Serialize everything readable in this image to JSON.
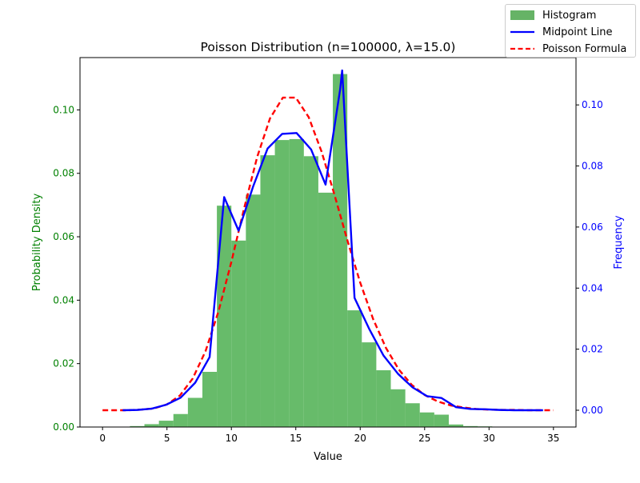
{
  "chart_data": {
    "type": "bar",
    "title": "Poisson Distribution (n=100000, λ=15.0)",
    "xlabel": "Value",
    "ylabel_left": "Probability Density",
    "ylabel_right": "Frequency",
    "xlim": [
      -1.75,
      36.75
    ],
    "ylim_left": [
      0,
      0.1165
    ],
    "ylim_right": [
      -0.0055,
      0.1155
    ],
    "x_ticks": [
      0,
      5,
      10,
      15,
      20,
      25,
      30,
      35
    ],
    "y_ticks_left": [
      0.0,
      0.02,
      0.04,
      0.06,
      0.08,
      0.1
    ],
    "y_ticks_right": [
      0.0,
      0.02,
      0.04,
      0.06,
      0.08,
      0.1
    ],
    "x_tick_labels": [
      "0",
      "5",
      "10",
      "15",
      "20",
      "25",
      "30",
      "35"
    ],
    "y_tick_labels_left": [
      "0.00",
      "0.02",
      "0.04",
      "0.06",
      "0.08",
      "0.10"
    ],
    "y_tick_labels_right": [
      "0.00",
      "0.02",
      "0.04",
      "0.06",
      "0.08",
      "0.10"
    ],
    "colors": {
      "histogram": "#4caf50",
      "midpoint": "#0000ff",
      "poisson": "#ff0000",
      "left_axis": "#008000",
      "right_axis": "#0000ff"
    },
    "legend": {
      "placement": "top-right",
      "entries": [
        "Histogram",
        "Midpoint Line",
        "Poisson Formula"
      ]
    },
    "histogram": {
      "name": "Histogram",
      "bin_edges": [
        1.0,
        2.125,
        3.25,
        4.375,
        5.5,
        6.625,
        7.75,
        8.875,
        10.0,
        11.125,
        12.25,
        13.375,
        14.5,
        15.625,
        16.75,
        17.875,
        19.0,
        20.125,
        21.25,
        22.375,
        23.5,
        24.625,
        25.75,
        26.875,
        28.0,
        29.125,
        30.25,
        31.375
      ],
      "values": [
        5e-05,
        0.0003,
        0.0009,
        0.002,
        0.0041,
        0.0092,
        0.0174,
        0.0698,
        0.0588,
        0.0733,
        0.0857,
        0.0905,
        0.0908,
        0.0854,
        0.0739,
        0.1113,
        0.0368,
        0.0267,
        0.0179,
        0.0119,
        0.0075,
        0.0046,
        0.0039,
        0.0008,
        0.0003,
        0.0002,
        5e-05
      ]
    },
    "midpoint_line": {
      "name": "Midpoint Line",
      "x": [
        1.56,
        2.69,
        3.81,
        4.94,
        6.06,
        7.19,
        8.31,
        9.44,
        10.56,
        11.69,
        12.81,
        13.94,
        15.06,
        16.19,
        17.31,
        18.44,
        18.6,
        19.56,
        20.69,
        21.81,
        22.94,
        24.06,
        25.19,
        26.31,
        27.44,
        28.56,
        29.69,
        30.81,
        31.94,
        33.06,
        34.19
      ],
      "values": [
        0.0,
        0.0001,
        0.0005,
        0.0018,
        0.0041,
        0.009,
        0.0174,
        0.0698,
        0.0588,
        0.0733,
        0.0857,
        0.0905,
        0.0908,
        0.0854,
        0.0739,
        0.105,
        0.1113,
        0.0368,
        0.0267,
        0.0179,
        0.0119,
        0.0075,
        0.0046,
        0.004,
        0.001,
        0.0004,
        0.0003,
        0.0001,
        0.0,
        0.0,
        0.0
      ]
    },
    "poisson_formula": {
      "name": "Poisson Formula",
      "x": [
        0,
        1,
        2,
        3,
        4,
        5,
        6,
        7,
        8,
        9,
        10,
        11,
        12,
        13,
        14,
        15,
        16,
        17,
        18,
        19,
        20,
        21,
        22,
        23,
        24,
        25,
        26,
        27,
        28,
        29,
        30,
        31,
        32,
        33,
        34,
        35
      ],
      "values": [
        0.0,
        0.0,
        0.0,
        0.0002,
        0.0006,
        0.0019,
        0.0048,
        0.0104,
        0.0194,
        0.0324,
        0.0486,
        0.0663,
        0.0829,
        0.0956,
        0.1024,
        0.1024,
        0.096,
        0.0847,
        0.0706,
        0.0557,
        0.0418,
        0.0299,
        0.0204,
        0.0133,
        0.0083,
        0.005,
        0.0029,
        0.0016,
        0.0009,
        0.0004,
        0.0002,
        0.0001,
        0.0001,
        0.0,
        0.0,
        0.0
      ]
    }
  }
}
